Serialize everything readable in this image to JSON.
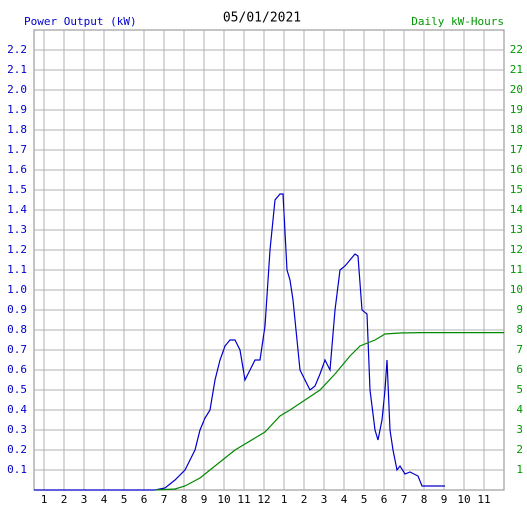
{
  "chart_data": {
    "type": "line",
    "title": "05/01/2021",
    "ylabel": "Power Output (kW)",
    "y2label": "Daily kW-Hours",
    "xlim": [
      0.5,
      24
    ],
    "xticks": [
      1,
      2,
      3,
      4,
      5,
      6,
      7,
      8,
      9,
      10,
      11,
      12,
      {
        "value": 13,
        "label": "1"
      },
      {
        "value": 14,
        "label": "2"
      },
      {
        "value": 15,
        "label": "3"
      },
      {
        "value": 16,
        "label": "4"
      },
      {
        "value": 17,
        "label": "5"
      },
      {
        "value": 18,
        "label": "6"
      },
      {
        "value": 19,
        "label": "7"
      },
      {
        "value": 20,
        "label": "8"
      },
      {
        "value": 21,
        "label": "9"
      },
      {
        "value": 22,
        "label": "10"
      },
      {
        "value": 23,
        "label": "11"
      }
    ],
    "ylim": [
      0,
      2.3
    ],
    "yticks": [
      0.1,
      0.2,
      0.3,
      0.4,
      0.5,
      0.6,
      0.7,
      0.8,
      0.9,
      {
        "value": 1,
        "label": "1.0"
      },
      1.1,
      1.2,
      1.3,
      1.4,
      1.5,
      1.6,
      1.7,
      1.8,
      1.9,
      {
        "value": 2,
        "label": "2.0"
      },
      2.1,
      2.2
    ],
    "y2lim": [
      0,
      23
    ],
    "y2ticks": [
      1,
      2,
      3,
      4,
      5,
      6,
      7,
      8,
      9,
      10,
      11,
      12,
      13,
      14,
      15,
      16,
      17,
      18,
      19,
      20,
      21,
      22
    ],
    "grid": true,
    "series": [
      {
        "color": "#0000cc",
        "axis": "y",
        "x": [
          0.5,
          6.55,
          7.05,
          7.55,
          8.05,
          8.3,
          8.55,
          8.8,
          9.05,
          9.3,
          9.55,
          9.8,
          10.05,
          10.3,
          10.55,
          10.8,
          11.05,
          11.3,
          11.55,
          11.8,
          12.05,
          12.3,
          12.55,
          12.8,
          12.95,
          13.15,
          13.3,
          13.45,
          13.65,
          13.8,
          14.05,
          14.3,
          14.55,
          14.8,
          15.05,
          15.3,
          15.55,
          15.8,
          16.05,
          16.3,
          16.55,
          16.7,
          16.9,
          17.15,
          17.3,
          17.55,
          17.7,
          17.9,
          18.05,
          18.15,
          18.3,
          18.45,
          18.65,
          18.8,
          19.05,
          19.3,
          19.7,
          19.9,
          21.05
        ],
        "values": [
          0,
          0,
          0.01,
          0.05,
          0.1,
          0.15,
          0.2,
          0.3,
          0.36,
          0.4,
          0.55,
          0.65,
          0.72,
          0.75,
          0.75,
          0.7,
          0.55,
          0.6,
          0.65,
          0.65,
          0.82,
          1.2,
          1.45,
          1.48,
          1.48,
          1.1,
          1.05,
          0.95,
          0.75,
          0.6,
          0.55,
          0.5,
          0.52,
          0.58,
          0.65,
          0.6,
          0.9,
          1.1,
          1.12,
          1.15,
          1.18,
          1.17,
          0.9,
          0.88,
          0.5,
          0.3,
          0.25,
          0.35,
          0.5,
          0.65,
          0.3,
          0.2,
          0.1,
          0.12,
          0.08,
          0.09,
          0.07,
          0.02,
          0.02
        ]
      },
      {
        "color": "#008800",
        "axis": "y2",
        "x": [
          6.55,
          7.55,
          8.05,
          8.8,
          9.55,
          10.3,
          10.55,
          11.05,
          12.05,
          12.8,
          13.3,
          14.05,
          14.8,
          15.55,
          16.3,
          16.8,
          17.55,
          18.05,
          18.8,
          19.8,
          24
        ],
        "values": [
          0,
          0.05,
          0.2,
          0.6,
          1.2,
          1.8,
          2.0,
          2.3,
          2.9,
          3.7,
          4.0,
          4.5,
          5.0,
          5.8,
          6.7,
          7.2,
          7.5,
          7.8,
          7.85,
          7.87,
          7.87
        ]
      }
    ]
  }
}
